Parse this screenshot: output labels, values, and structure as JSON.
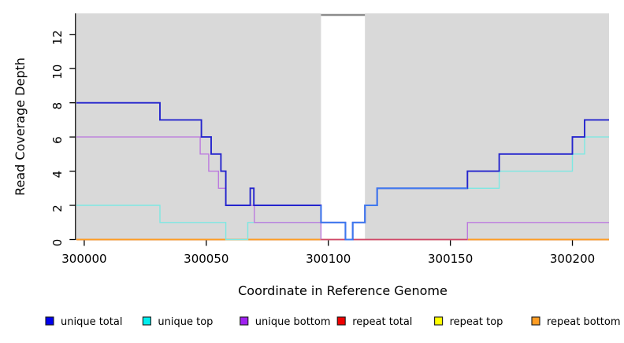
{
  "figure": {
    "background": "#ffffff",
    "plot_background": "#d9d9d9"
  },
  "chart_data": {
    "type": "line",
    "subtype": "step-after-coverage-plot",
    "title": "",
    "xlabel": "Coordinate in Reference Genome",
    "ylabel": "Read Coverage Depth",
    "x_range": [
      299996.8,
      300215
    ],
    "y_range": [
      0,
      13.2
    ],
    "x_ticks": [
      300000,
      300050,
      300100,
      300150,
      300200
    ],
    "y_ticks": [
      0,
      2,
      4,
      6,
      8,
      10,
      12
    ],
    "grid": false,
    "legend_position": "bottom-row",
    "highlight_band": {
      "x1": 300097,
      "x2": 300115,
      "fill": "#ffffff",
      "top_border_color": "#8c8c8c",
      "note": "white unmasked column over gray plot background"
    },
    "series": [
      {
        "name": "unique total",
        "line_color": "#2424cd",
        "swatch_color": "#0000ee",
        "width": 1.9,
        "steps": [
          [
            299996.8,
            8
          ],
          [
            300031,
            7
          ],
          [
            300048,
            6
          ],
          [
            300052,
            5
          ],
          [
            300056,
            4
          ],
          [
            300058,
            2
          ],
          [
            300068,
            3
          ],
          [
            300069.5,
            2
          ],
          [
            300097,
            1
          ],
          [
            300107,
            0
          ],
          [
            300110,
            1
          ],
          [
            300115,
            2
          ],
          [
            300120,
            3
          ],
          [
            300157,
            4
          ],
          [
            300170,
            5
          ],
          [
            300200,
            6
          ],
          [
            300205,
            7
          ]
        ],
        "x_end": 300215
      },
      {
        "name": "unique top",
        "line_color": "#7de8e2",
        "swatch_color": "#00eeee",
        "width": 1.4,
        "steps": [
          [
            299996.8,
            2
          ],
          [
            300031,
            1
          ],
          [
            300058,
            0
          ],
          [
            300067,
            1
          ],
          [
            300107,
            0
          ],
          [
            300110,
            1
          ],
          [
            300115,
            2
          ],
          [
            300120,
            3
          ],
          [
            300170,
            4
          ],
          [
            300200,
            5
          ],
          [
            300205,
            6
          ]
        ],
        "x_end": 300215
      },
      {
        "name": "unique bottom",
        "line_color": "#bc7ade",
        "swatch_color": "#a020f0",
        "width": 1.4,
        "steps": [
          [
            299996.8,
            6
          ],
          [
            300047.5,
            5
          ],
          [
            300051,
            4
          ],
          [
            300055,
            3
          ],
          [
            300058,
            2
          ],
          [
            300069.7,
            1
          ],
          [
            300097,
            0
          ],
          [
            300157,
            1
          ]
        ],
        "x_end": 300215
      },
      {
        "name": "repeat total",
        "line_color": "#dd2233",
        "swatch_color": "#ee0000",
        "width": 1.4,
        "steps": [
          [
            299996.8,
            0
          ]
        ],
        "x_end": 300215
      },
      {
        "name": "repeat top",
        "line_color": "#ffff00",
        "swatch_color": "#ffff00",
        "width": 1.4,
        "steps": [
          [
            299996.8,
            0
          ]
        ],
        "x_end": 300215
      },
      {
        "name": "repeat bottom",
        "line_color": "#ff9d23",
        "swatch_color": "#ff9d23",
        "width": 1.8,
        "steps": [
          [
            299996.8,
            0
          ]
        ],
        "x_end": 300215
      }
    ],
    "overlap_blend_segments": [
      {
        "name": "zero-line-overlap",
        "color": "#cf4769",
        "width": 1.6,
        "y": 0,
        "x1": 300097,
        "x2": 300157,
        "note": "visible crimson blend of overlapping zero-depth lines between band and right rise"
      },
      {
        "name": "band-bright-blue-overlap",
        "color": "#3e79ef",
        "width": 1.9,
        "points": [
          [
            300097,
            2
          ],
          [
            300097,
            1
          ],
          [
            300107,
            1
          ],
          [
            300107,
            0
          ],
          [
            300110,
            0
          ],
          [
            300110,
            1
          ],
          [
            300115,
            1
          ],
          [
            300115,
            2
          ],
          [
            300120,
            2
          ],
          [
            300120,
            3
          ],
          [
            300157,
            3
          ]
        ],
        "note": "brighter blue where unique total and unique top coincide"
      }
    ]
  },
  "legend": {
    "items": [
      {
        "label": "unique total",
        "swatch": "#0000ee"
      },
      {
        "label": "unique top",
        "swatch": "#00eeee"
      },
      {
        "label": "unique bottom",
        "swatch": "#a020f0"
      },
      {
        "label": "repeat total",
        "swatch": "#ee0000"
      },
      {
        "label": "repeat top",
        "swatch": "#ffff00"
      },
      {
        "label": "repeat bottom",
        "swatch": "#ff9d23"
      }
    ]
  }
}
